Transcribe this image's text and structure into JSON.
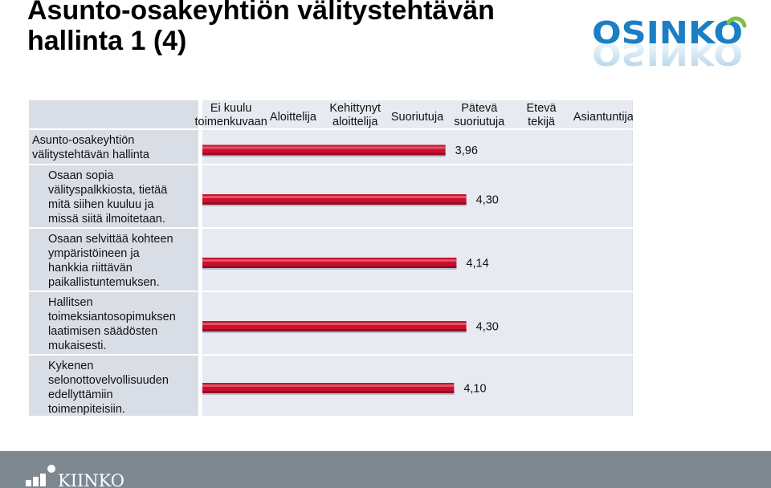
{
  "header": {
    "title_line1": "Asunto-osakeyhtiön välitystehtävän",
    "title_line2": "hallinta 1 (4)"
  },
  "brand": {
    "osinko_text": "OSINKO",
    "kiinko_text": "KIINKO",
    "osinko_color": "#1a7fc4",
    "osinko_accent": "#7cc242",
    "footer_color": "#7e8890"
  },
  "chart_data": {
    "type": "bar",
    "orientation": "horizontal",
    "scale_labels": [
      [
        "Ei kuulu",
        "toimenkuvaan"
      ],
      [
        "Aloittelija"
      ],
      [
        "Kehittynyt",
        "aloittelija"
      ],
      [
        "Suoriutuja"
      ],
      [
        "Pätevä",
        "suoriutuja"
      ],
      [
        "Etevä",
        "tekijä"
      ],
      [
        "Asiantuntija"
      ]
    ],
    "xlim": [
      0,
      7
    ],
    "categories": [
      [
        "Asunto-osakeyhtiön",
        "välitystehtävän hallinta"
      ],
      [
        "Osaan sopia",
        "välityspalkkiosta, tietää",
        "mitä siihen kuuluu ja",
        "missä siitä ilmoitetaan."
      ],
      [
        "Osaan selvittää kohteen",
        "ympäristöineen ja",
        "hankkia riittävän",
        "paikallistuntemuksen."
      ],
      [
        "Hallitsen",
        "toimeksiantosopimuksen",
        "laatimisen säädösten",
        "mukaisesti."
      ],
      [
        "Kykenen",
        "selonottovelvollisuuden",
        "edellyttämiin",
        "toimenpiteisiin."
      ]
    ],
    "indent": [
      false,
      true,
      true,
      true,
      true
    ],
    "values": [
      3.96,
      4.3,
      4.14,
      4.3,
      4.1
    ],
    "value_labels": [
      "3,96",
      "4,30",
      "4,14",
      "4,30",
      "4,10"
    ],
    "bar_color": "#c8102e",
    "grid": false,
    "legend": "none"
  }
}
